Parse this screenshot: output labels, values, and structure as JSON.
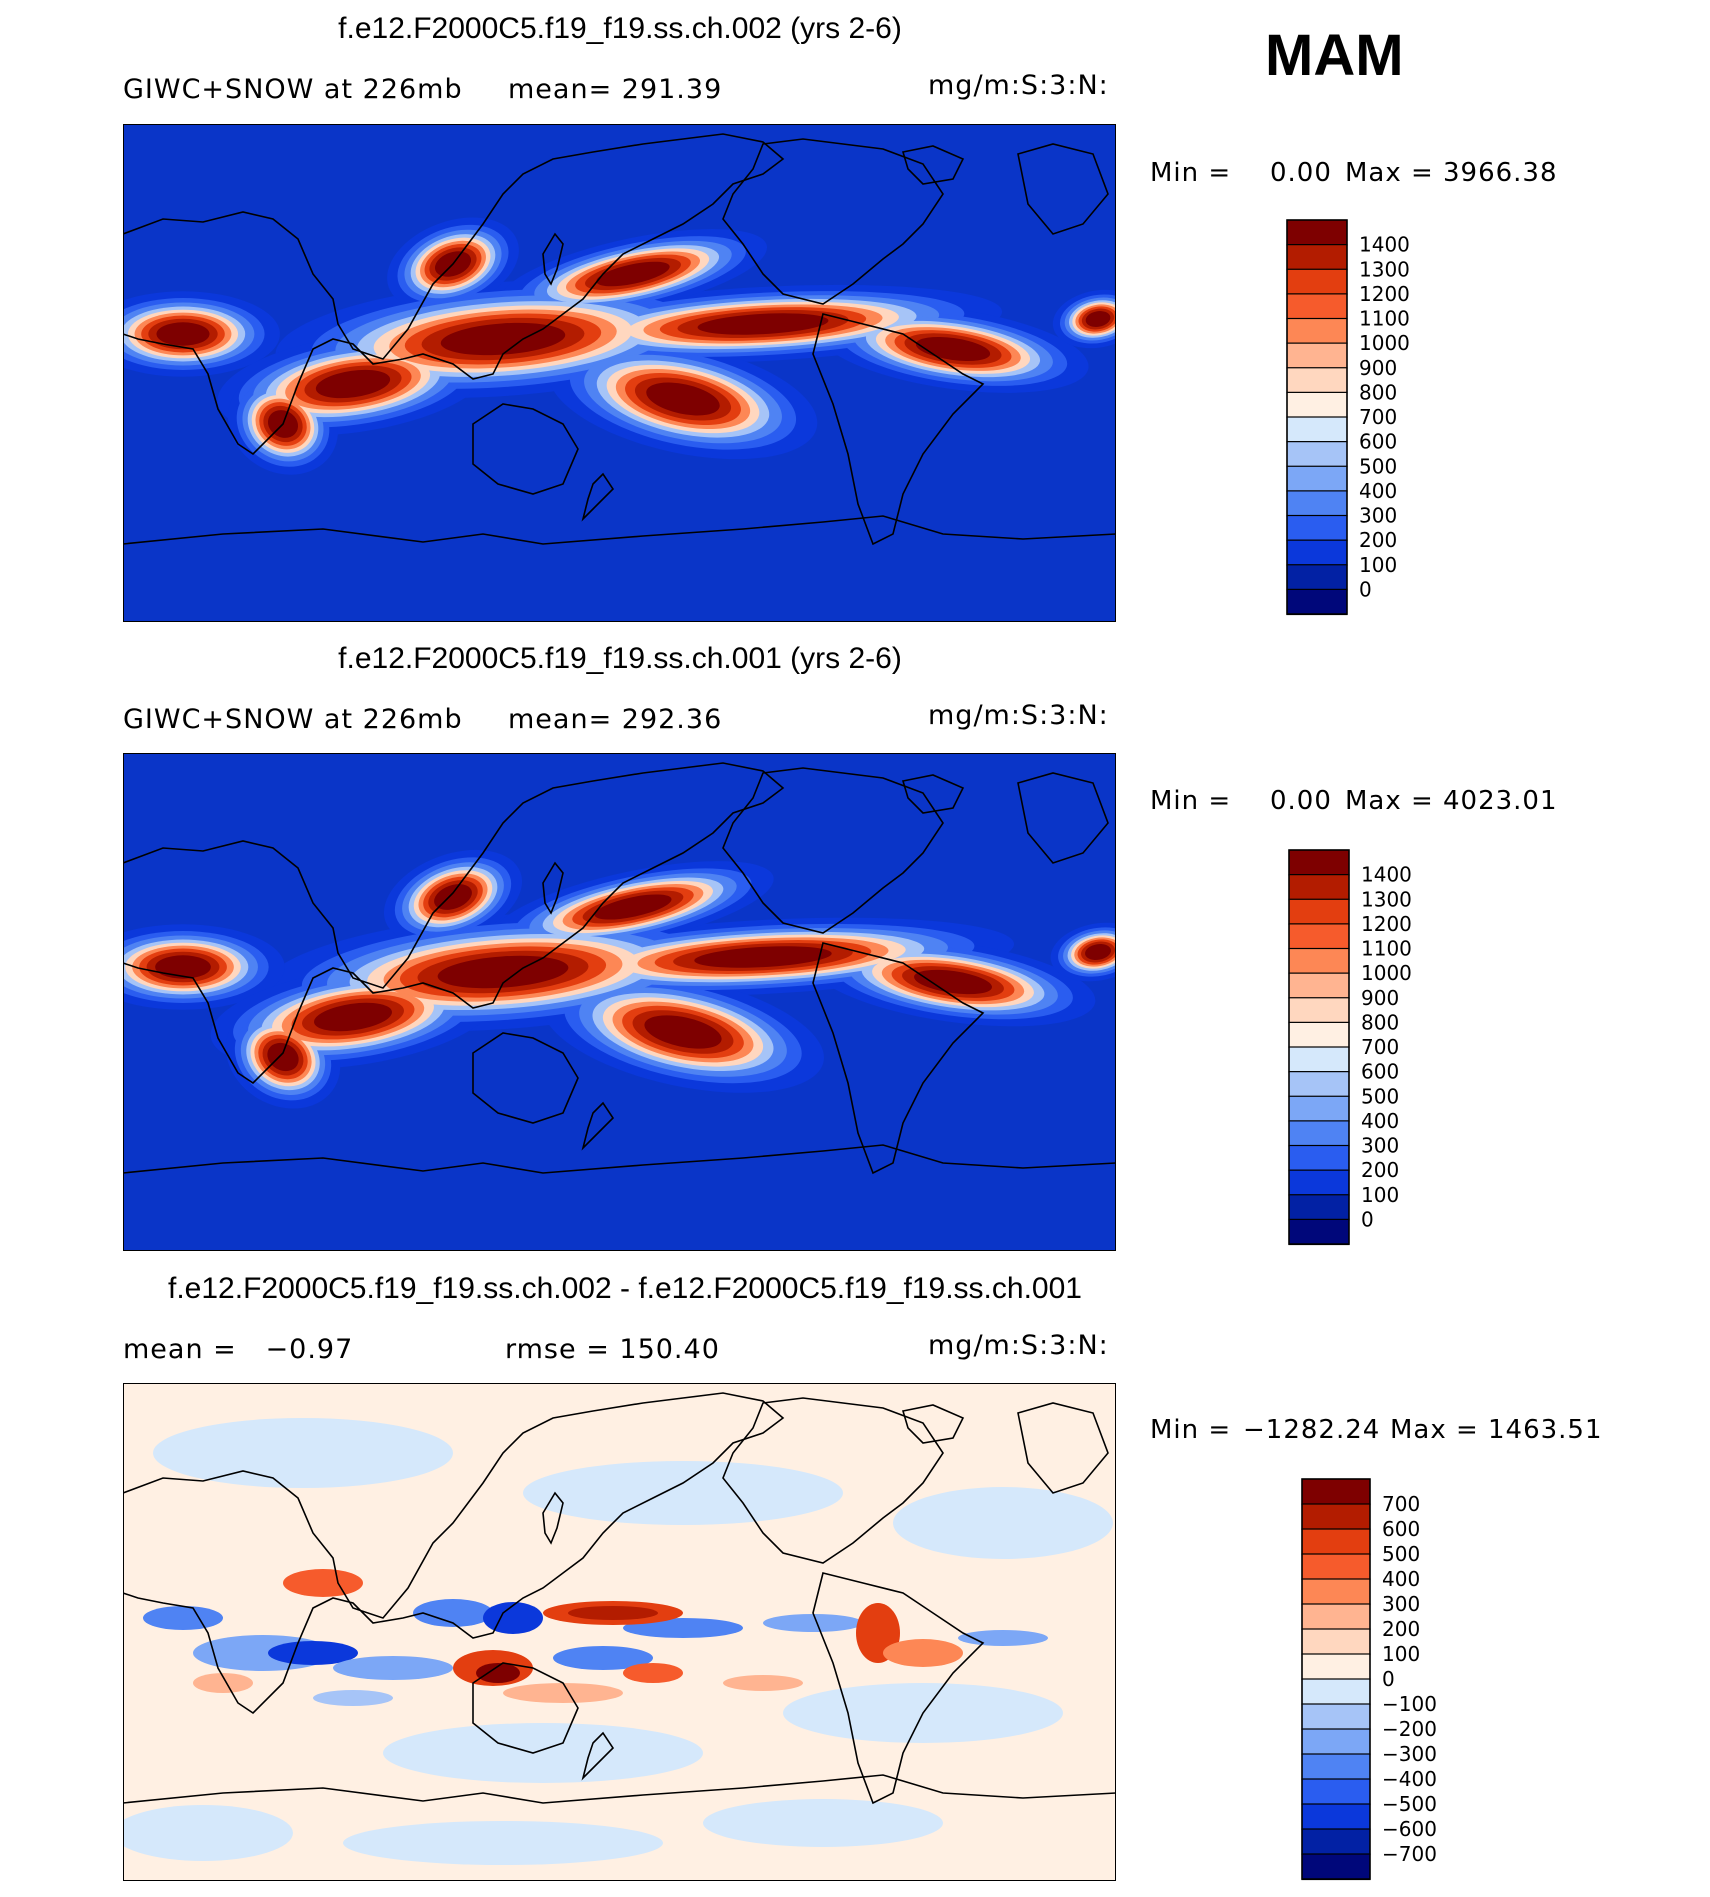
{
  "season": "MAM",
  "chart_data": [
    {
      "type": "heatmap",
      "title": "f.e12.F2000C5.f19_f19.ss.ch.002 (yrs 2-6)",
      "field": "GIWC+SNOW at 226mb",
      "stat_left": "GIWC+SNOW at 226mb",
      "stat_mid": "mean= 291.39",
      "mean": 291.39,
      "units": "mg/m:S:3:N:",
      "min_label": "Min =",
      "min_value": "0.00",
      "max_label": "Max =",
      "max_value": "3966.38",
      "min": 0.0,
      "max": 3966.38,
      "colorbar_levels": [
        "1400",
        "1300",
        "1200",
        "1100",
        "1000",
        "900",
        "800",
        "700",
        "600",
        "500",
        "400",
        "300",
        "200",
        "100",
        "0"
      ],
      "colorbar_colors": [
        "#7e0000",
        "#b31c00",
        "#e33e10",
        "#f65b2c",
        "#fd8755",
        "#ffb491",
        "#ffd7bf",
        "#fff0e3",
        "#d5e8fb",
        "#a6c4f7",
        "#7ca7f6",
        "#4f83f3",
        "#2a5df0",
        "#0b38db",
        "#0221a4",
        "#00077a"
      ]
    },
    {
      "type": "heatmap",
      "title": "f.e12.F2000C5.f19_f19.ss.ch.001 (yrs 2-6)",
      "field": "GIWC+SNOW at 226mb",
      "stat_left": "GIWC+SNOW at 226mb",
      "stat_mid": "mean= 292.36",
      "mean": 292.36,
      "units": "mg/m:S:3:N:",
      "min_label": "Min =",
      "min_value": "0.00",
      "max_label": "Max =",
      "max_value": "4023.01",
      "min": 0.0,
      "max": 4023.01,
      "colorbar_levels": [
        "1400",
        "1300",
        "1200",
        "1100",
        "1000",
        "900",
        "800",
        "700",
        "600",
        "500",
        "400",
        "300",
        "200",
        "100",
        "0"
      ],
      "colorbar_colors": [
        "#7e0000",
        "#b31c00",
        "#e33e10",
        "#f65b2c",
        "#fd8755",
        "#ffb491",
        "#ffd7bf",
        "#fff0e3",
        "#d5e8fb",
        "#a6c4f7",
        "#7ca7f6",
        "#4f83f3",
        "#2a5df0",
        "#0b38db",
        "#0221a4",
        "#00077a"
      ]
    },
    {
      "type": "heatmap",
      "title": "f.e12.F2000C5.f19_f19.ss.ch.002 - f.e12.F2000C5.f19_f19.ss.ch.001",
      "stat_left": "mean =   −0.97",
      "stat_mid": "rmse = 150.40",
      "mean": -0.97,
      "rmse": 150.4,
      "units": "mg/m:S:3:N:",
      "min_label": "Min =",
      "min_value": "−1282.24",
      "max_label": "Max =",
      "max_value": "1463.51",
      "min": -1282.24,
      "max": 1463.51,
      "colorbar_levels": [
        "700",
        "600",
        "500",
        "400",
        "300",
        "200",
        "100",
        "0",
        "−100",
        "−200",
        "−300",
        "−400",
        "−500",
        "−600",
        "−700"
      ],
      "colorbar_colors": [
        "#7e0000",
        "#b31c00",
        "#e33e10",
        "#f65b2c",
        "#fd8755",
        "#ffb491",
        "#ffd7bf",
        "#fff0e3",
        "#d5e8fb",
        "#a6c4f7",
        "#7ca7f6",
        "#4f83f3",
        "#2a5df0",
        "#0b38db",
        "#0221a4",
        "#00077a"
      ]
    }
  ]
}
